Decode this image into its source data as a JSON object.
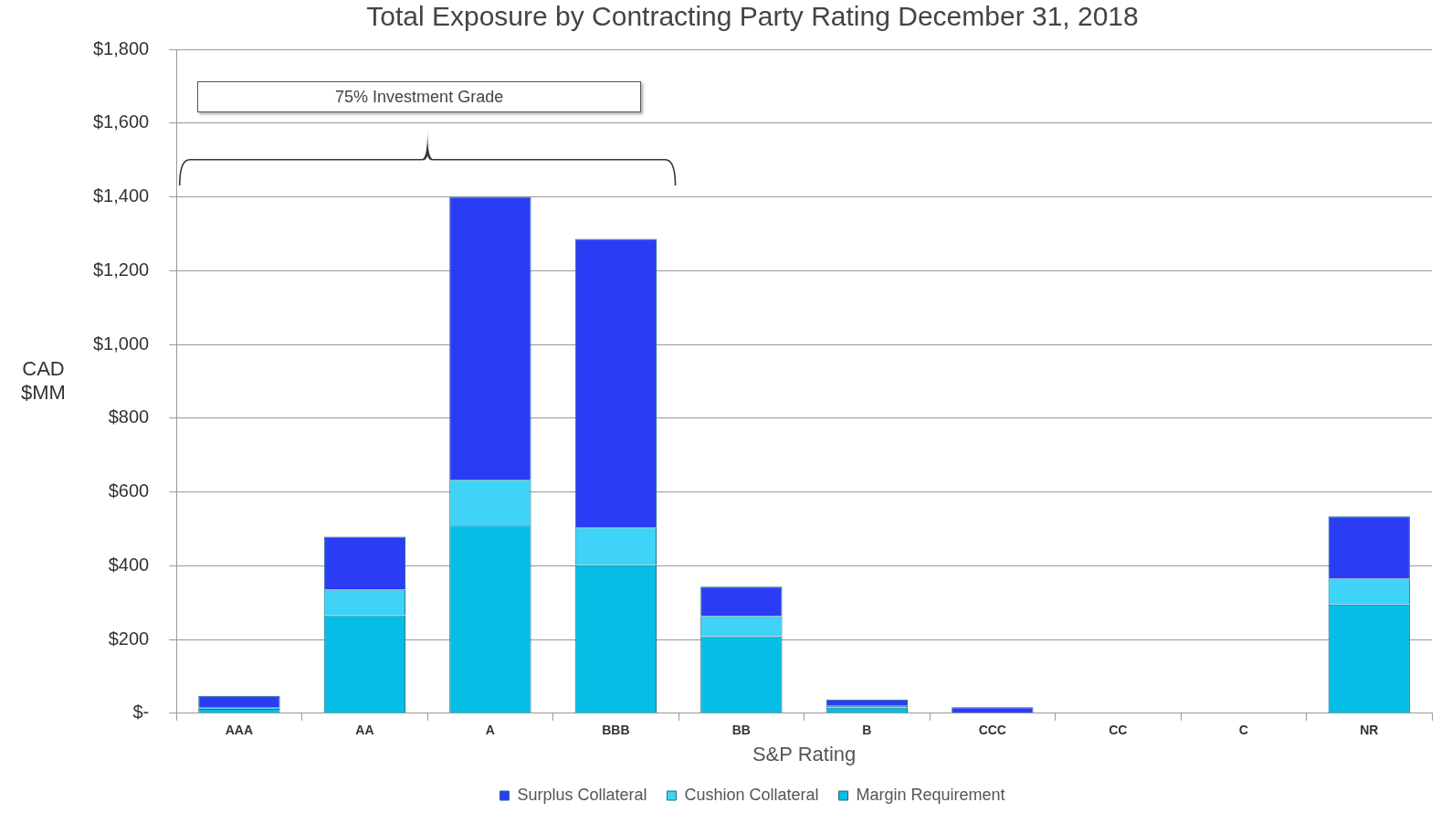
{
  "chart_data": {
    "type": "bar",
    "title": "Total Exposure by Contracting Party Rating December 31, 2018",
    "xlabel": "S&P Rating",
    "ylabel": "CAD $MM",
    "categories": [
      "AAA",
      "AA",
      "A",
      "BBB",
      "BB",
      "B",
      "CCC",
      "CC",
      "C",
      "NR"
    ],
    "stacked": true,
    "series": [
      {
        "name": "Margin Requirement",
        "color": "#06bde6",
        "values": [
          12,
          266,
          509,
          402,
          209,
          15,
          null,
          0,
          0,
          295
        ]
      },
      {
        "name": "Cushion Collateral",
        "color": "#3fd3f7",
        "values": [
          3,
          69,
          124,
          102,
          54,
          5,
          null,
          0,
          0,
          70
        ]
      },
      {
        "name": "Surplus Collateral",
        "color": "#2b3cf5",
        "values": [
          32,
          144,
          767,
          782,
          80,
          17,
          16,
          0,
          0,
          169
        ]
      }
    ],
    "ylim": [
      0,
      1800
    ],
    "yticks": [
      {
        "value": 0,
        "label": "$-"
      },
      {
        "value": 200,
        "label": "$200"
      },
      {
        "value": 400,
        "label": "$400"
      },
      {
        "value": 600,
        "label": "$600"
      },
      {
        "value": 800,
        "label": "$800"
      },
      {
        "value": 1000,
        "label": "$1,000"
      },
      {
        "value": 1200,
        "label": "$1,200"
      },
      {
        "value": 1400,
        "label": "$1,400"
      },
      {
        "value": 1600,
        "label": "$1,600"
      },
      {
        "value": 1800,
        "label": "$1,800"
      }
    ],
    "grid": "y",
    "legend": "bottom",
    "annotations": [
      "75% Investment Grade"
    ]
  }
}
